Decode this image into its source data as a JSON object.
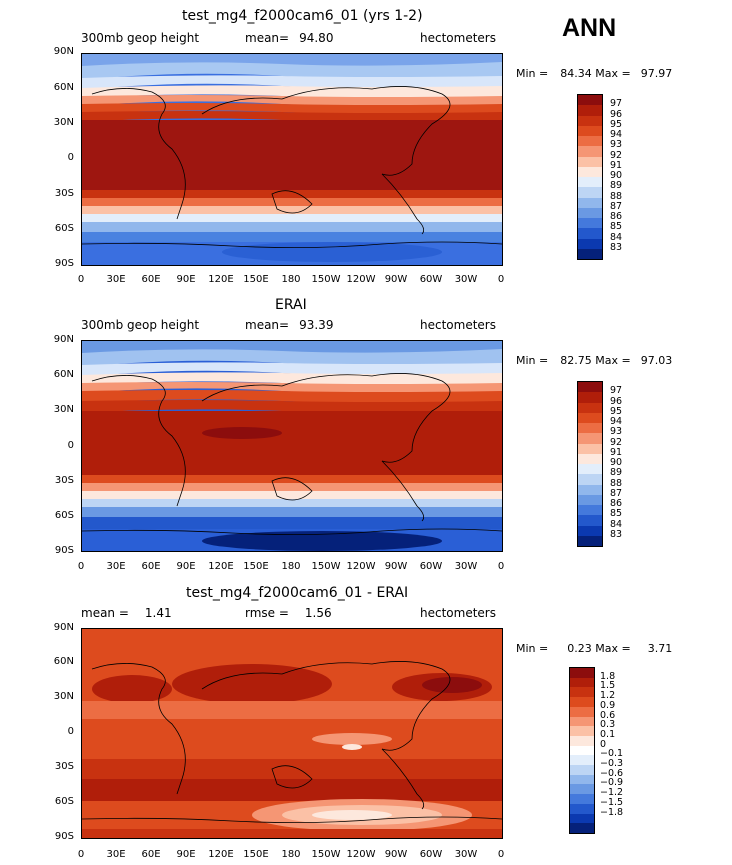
{
  "season": "ANN",
  "panels": [
    {
      "title": "test_mg4_f2000cam6_01 (yrs 1-2)",
      "left_label": "300mb geop height",
      "center_label": "mean=",
      "center_value": "94.80",
      "right_label": "hectometers",
      "min_label": "Min =",
      "min_value": "84.34",
      "max_label": "Max =",
      "max_value": "97.97",
      "colorbar_labels": [
        "97",
        "96",
        "95",
        "94",
        "93",
        "92",
        "91",
        "90",
        "89",
        "88",
        "87",
        "86",
        "85",
        "84",
        "83"
      ]
    },
    {
      "title": "ERAI",
      "left_label": "300mb geop height",
      "center_label": "mean=",
      "center_value": "93.39",
      "right_label": "hectometers",
      "min_label": "Min =",
      "min_value": "82.75",
      "max_label": "Max =",
      "max_value": "97.03",
      "colorbar_labels": [
        "97",
        "96",
        "95",
        "94",
        "93",
        "92",
        "91",
        "90",
        "89",
        "88",
        "87",
        "86",
        "85",
        "84",
        "83"
      ]
    },
    {
      "title": "test_mg4_f2000cam6_01 - ERAI",
      "left_label": "mean =",
      "left_value": "1.41",
      "center_label": "rmse =",
      "center_value": "1.56",
      "right_label": "hectometers",
      "min_label": "Min =",
      "min_value": "0.23",
      "max_label": "Max =",
      "max_value": "3.71",
      "colorbar_labels": [
        "1.8",
        "1.5",
        "1.2",
        "0.9",
        "0.6",
        "0.3",
        "0.1",
        "0",
        "−0.1",
        "−0.3",
        "−0.6",
        "−0.9",
        "−1.2",
        "−1.5",
        "−1.8"
      ]
    }
  ],
  "lat_ticks": [
    "90N",
    "60N",
    "30N",
    "0",
    "30S",
    "60S",
    "90S"
  ],
  "lon_ticks": [
    "0",
    "30E",
    "60E",
    "90E",
    "120E",
    "150E",
    "180",
    "150W",
    "120W",
    "90W",
    "60W",
    "30W",
    "0"
  ],
  "palette": {
    "abs": [
      "#8c0d0d",
      "#b01e0a",
      "#c83210",
      "#dd4b1e",
      "#ec6d43",
      "#f59674",
      "#fbc1a6",
      "#fde8dd",
      "#e3eefb",
      "#bdd5f4",
      "#91b7ec",
      "#6a99e3",
      "#4479dc",
      "#2358cc",
      "#0b39b0",
      "#05217a"
    ],
    "diff": [
      "#8c0d0d",
      "#b01e0a",
      "#c83210",
      "#dd4b1e",
      "#ec6d43",
      "#f59674",
      "#fbc1a6",
      "#fde8dd",
      "#ffffff",
      "#e3eefb",
      "#bdd5f4",
      "#91b7ec",
      "#6a99e3",
      "#4479dc",
      "#2358cc",
      "#0b39b0",
      "#05217a"
    ]
  }
}
